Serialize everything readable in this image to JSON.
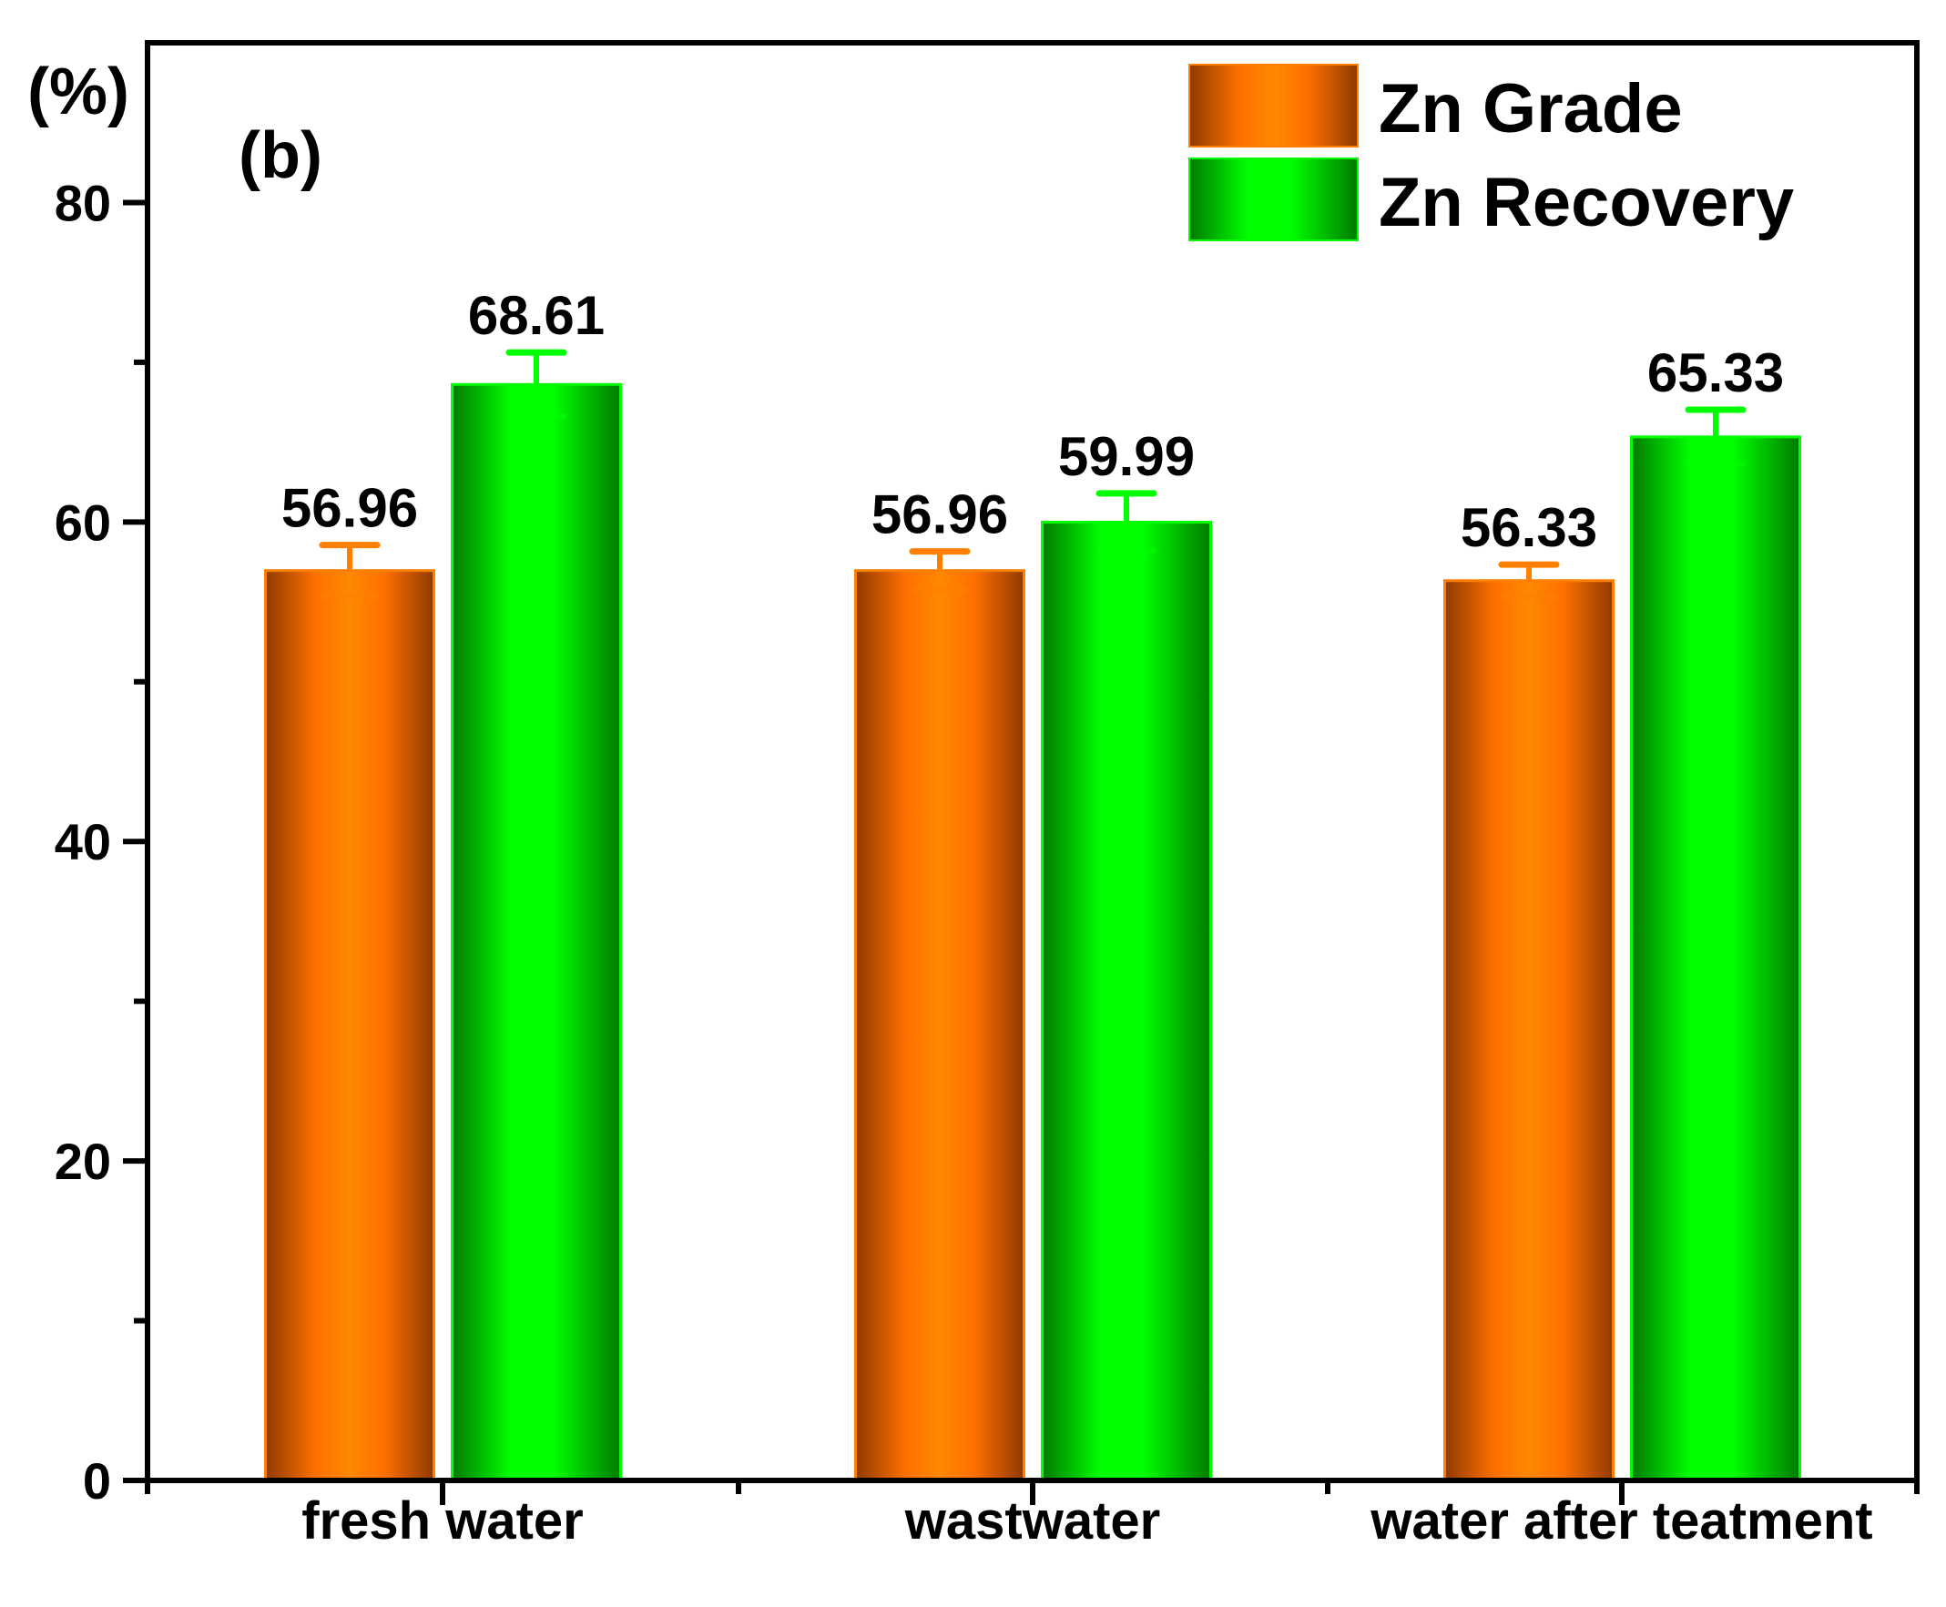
{
  "chart_data": {
    "type": "bar",
    "title": "",
    "panel_label": "(b)",
    "ylabel": "(%)",
    "xlabel": "",
    "ylim": [
      0,
      90
    ],
    "yticks": [
      0,
      20,
      40,
      60,
      80
    ],
    "yminor": [
      10,
      30,
      50,
      70
    ],
    "grid": false,
    "legend_position": "top-right",
    "categories": [
      "fresh water",
      "wastwater",
      "water after teatment"
    ],
    "series": [
      {
        "name": "Zn Grade",
        "values": [
          56.96,
          56.96,
          56.33
        ],
        "errors": [
          1.6,
          1.2,
          1.0
        ],
        "labels": [
          "56.96",
          "56.96",
          "56.33"
        ],
        "color_dark": "#8f3a00",
        "color_light": "#ff8200",
        "edge": "#ff8000"
      },
      {
        "name": "Zn Recovery",
        "values": [
          68.61,
          59.99,
          65.33
        ],
        "errors": [
          2.0,
          1.8,
          1.7
        ],
        "labels": [
          "68.61",
          "59.99",
          "65.33"
        ],
        "color_dark": "#007a00",
        "color_light": "#00ff00",
        "edge": "#00ff00"
      }
    ]
  }
}
